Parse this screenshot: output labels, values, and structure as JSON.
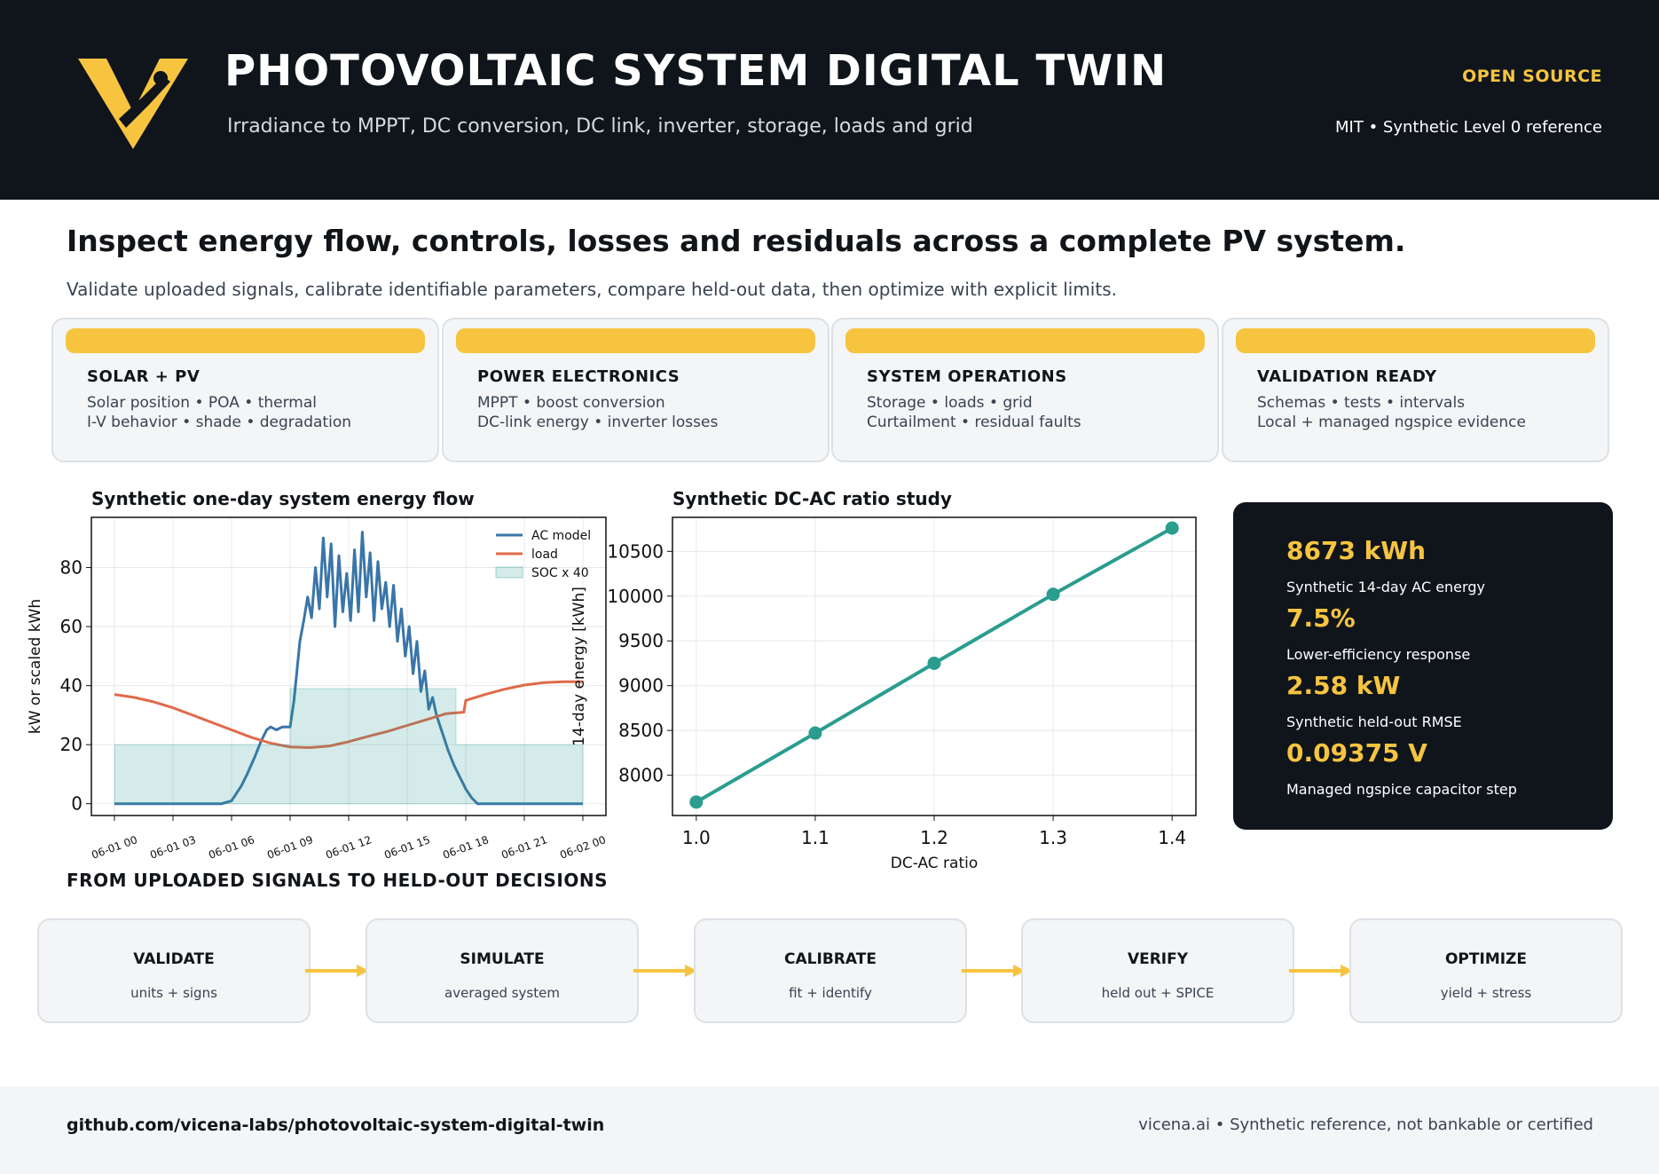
{
  "header": {
    "title": "PHOTOVOLTAIC SYSTEM DIGITAL TWIN",
    "subtitle": "Irradiance to MPPT, DC conversion, DC link, inverter, storage, loads and grid",
    "badge": "OPEN SOURCE",
    "meta": "MIT  •  Synthetic Level 0 reference"
  },
  "intro": {
    "headline": "Inspect energy flow, controls, losses and residuals across a complete PV system.",
    "sub": "Validate uploaded signals, calibrate identifiable parameters, compare held-out data, then optimize with explicit limits."
  },
  "cards": [
    {
      "title": "SOLAR + PV",
      "line1": "Solar position • POA • thermal",
      "line2": "I-V behavior • shade • degradation"
    },
    {
      "title": "POWER ELECTRONICS",
      "line1": "MPPT • boost conversion",
      "line2": "DC-link energy • inverter losses"
    },
    {
      "title": "SYSTEM OPERATIONS",
      "line1": "Storage • loads • grid",
      "line2": "Curtailment • residual faults"
    },
    {
      "title": "VALIDATION READY",
      "line1": "Schemas • tests • intervals",
      "line2": "Local + managed ngspice evidence"
    }
  ],
  "chart_data": [
    {
      "type": "line",
      "title": "Synthetic one-day system energy flow",
      "xlabel": "",
      "ylabel": "kW or scaled kWh",
      "ylim": [
        -4,
        97
      ],
      "yticks": [
        0,
        20,
        40,
        60,
        80
      ],
      "x_ticks": [
        "06-01 00",
        "06-01 03",
        "06-01 06",
        "06-01 09",
        "06-01 12",
        "06-01 15",
        "06-01 18",
        "06-01 21",
        "06-02 00"
      ],
      "x_hours": [
        0,
        24
      ],
      "legend": "top-right",
      "grid": true,
      "series": [
        {
          "name": "AC model",
          "color": "#3a75a8",
          "x_hours": [
            0,
            5.5,
            6,
            6.5,
            6.8,
            7.2,
            7.5,
            7.8,
            8.0,
            8.3,
            8.6,
            9.0,
            9.2,
            9.5,
            9.7,
            9.9,
            10.1,
            10.3,
            10.5,
            10.7,
            10.9,
            11.1,
            11.3,
            11.5,
            11.7,
            11.9,
            12.1,
            12.3,
            12.5,
            12.7,
            12.9,
            13.1,
            13.3,
            13.5,
            13.7,
            13.9,
            14.1,
            14.3,
            14.5,
            14.7,
            14.9,
            15.1,
            15.3,
            15.5,
            15.7,
            15.9,
            16.1,
            16.3,
            16.5,
            16.8,
            17.1,
            17.4,
            17.7,
            18.0,
            18.3,
            18.6,
            19.0,
            24
          ],
          "values": [
            0,
            0,
            1,
            6,
            10,
            16,
            21,
            25,
            26,
            25,
            26,
            26,
            35,
            55,
            62,
            70,
            63,
            80,
            66,
            90,
            70,
            88,
            60,
            84,
            65,
            78,
            62,
            86,
            65,
            92,
            70,
            85,
            62,
            82,
            66,
            75,
            60,
            74,
            55,
            66,
            50,
            60,
            44,
            55,
            38,
            45,
            32,
            36,
            30,
            24,
            18,
            13,
            9,
            5,
            2,
            0,
            0,
            0
          ]
        },
        {
          "name": "load",
          "color": "#e06a4a",
          "x_hours": [
            0,
            1,
            2,
            3,
            4,
            5,
            6,
            7,
            8,
            9,
            10,
            11,
            12,
            13,
            14,
            15,
            16,
            17,
            17.9,
            18.0,
            19,
            20,
            21,
            22,
            23,
            24
          ],
          "values": [
            37,
            36,
            34.5,
            32.5,
            30,
            27.5,
            25,
            22.5,
            20.5,
            19.2,
            19,
            19.5,
            21,
            22.8,
            24.5,
            26.5,
            28.5,
            30.5,
            31,
            35,
            37,
            38.8,
            40.2,
            41,
            41.3,
            41.3
          ]
        },
        {
          "name": "SOC x 40",
          "color": "#2a9d8f",
          "kind": "area",
          "x_hours": [
            0,
            9,
            9.001,
            17.5,
            17.501,
            24
          ],
          "values": [
            20,
            20,
            39,
            39,
            20,
            20
          ]
        }
      ]
    },
    {
      "type": "line",
      "title": "Synthetic DC-AC ratio study",
      "xlabel": "DC-AC ratio",
      "ylabel": "14-day energy [kWh]",
      "xlim": [
        0.98,
        1.42
      ],
      "ylim": [
        7550,
        10880
      ],
      "xticks": [
        1.0,
        1.1,
        1.2,
        1.3,
        1.4
      ],
      "yticks": [
        8000,
        8500,
        9000,
        9500,
        10000,
        10500
      ],
      "grid": true,
      "series": [
        {
          "color": "#2a9d8f",
          "x": [
            1.0,
            1.1,
            1.2,
            1.3,
            1.4
          ],
          "values": [
            7700,
            8470,
            9250,
            10020,
            10760
          ]
        }
      ]
    }
  ],
  "stats": [
    {
      "value": "8673 kWh",
      "label": "Synthetic 14-day AC energy"
    },
    {
      "value": "7.5%",
      "label": "Lower-efficiency response"
    },
    {
      "value": "2.58 kW",
      "label": "Synthetic held-out RMSE"
    },
    {
      "value": "0.09375 V",
      "label": "Managed ngspice capacitor step"
    }
  ],
  "process": {
    "title": "FROM UPLOADED SIGNALS TO HELD-OUT DECISIONS",
    "steps": [
      {
        "name": "VALIDATE",
        "desc": "units + signs"
      },
      {
        "name": "SIMULATE",
        "desc": "averaged system"
      },
      {
        "name": "CALIBRATE",
        "desc": "fit + identify"
      },
      {
        "name": "VERIFY",
        "desc": "held out + SPICE"
      },
      {
        "name": "OPTIMIZE",
        "desc": "yield + stress"
      }
    ]
  },
  "footer": {
    "repo": "github.com/vicena-labs/photovoltaic-system-digital-twin",
    "right": "vicena.ai  •  Synthetic reference, not bankable or certified"
  },
  "colors": {
    "accent": "#f6c43f",
    "dark": "#10151c",
    "teal": "#2a9d8f",
    "blue": "#3a75a8",
    "red": "#e06a4a"
  },
  "icons": {
    "logo": "v-logo-icon",
    "arrow": "arrow-right-icon"
  }
}
